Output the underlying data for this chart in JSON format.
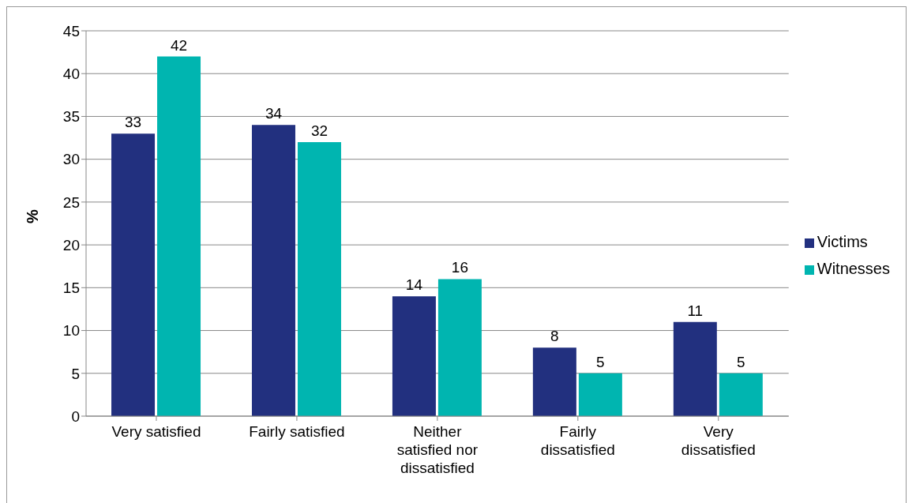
{
  "chart_data": {
    "type": "bar",
    "ylabel": "%",
    "categories": [
      "Very satisfied",
      "Fairly satisfied",
      "Neither satisfied nor dissatisfied",
      "Fairly dissatisfied",
      "Very dissatisfied"
    ],
    "series": [
      {
        "name": "Victims",
        "color": "#22307f",
        "values": [
          33,
          34,
          14,
          8,
          11
        ]
      },
      {
        "name": "Witnesses",
        "color": "#00b5b0",
        "values": [
          42,
          32,
          16,
          5,
          5
        ]
      }
    ],
    "ylim": [
      0,
      45
    ],
    "yticks": [
      0,
      5,
      10,
      15,
      20,
      25,
      30,
      35,
      40,
      45
    ],
    "grid": "y",
    "legend": "right",
    "data_labels": true
  }
}
